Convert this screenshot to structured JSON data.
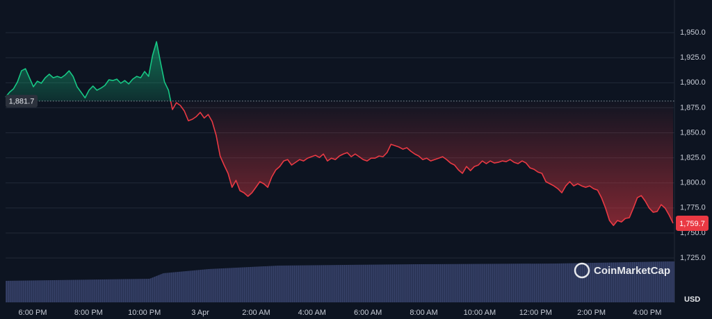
{
  "chart_data": {
    "type": "line",
    "colors": {
      "above": "#16c784",
      "below": "#ea3943"
    },
    "grid": true,
    "ylim": [
      1690,
      1975
    ],
    "yticks": [
      {
        "value": 1725,
        "label": "1,725.0"
      },
      {
        "value": 1750,
        "label": "1,750.0"
      },
      {
        "value": 1775,
        "label": "1,775.0"
      },
      {
        "value": 1800,
        "label": "1,800.0"
      },
      {
        "value": 1825,
        "label": "1,825.0"
      },
      {
        "value": 1850,
        "label": "1,850.0"
      },
      {
        "value": 1875,
        "label": "1,875.0"
      },
      {
        "value": 1900,
        "label": "1,900.0"
      },
      {
        "value": 1925,
        "label": "1,925.0"
      },
      {
        "value": 1950,
        "label": "1,950.0"
      }
    ],
    "x_labels": [
      "6:00 PM",
      "8:00 PM",
      "10:00 PM",
      "3 Apr",
      "2:00 AM",
      "4:00 AM",
      "6:00 AM",
      "8:00 AM",
      "10:00 AM",
      "12:00 PM",
      "2:00 PM",
      "4:00 PM"
    ],
    "baseline": {
      "value": 1881.7,
      "label": "1,881.7"
    },
    "last_price": {
      "value": 1759.7,
      "label": "1,759.7"
    },
    "currency": "USD",
    "watermark": "CoinMarketCap",
    "values": [
      1885.6,
      1890.5,
      1893.9,
      1900.8,
      1911.9,
      1914.0,
      1905.0,
      1896.0,
      1901.5,
      1899.5,
      1905.0,
      1908.5,
      1905.0,
      1906.4,
      1905.0,
      1907.8,
      1911.9,
      1906.4,
      1896.0,
      1890.5,
      1884.9,
      1892.5,
      1896.7,
      1892.5,
      1894.6,
      1897.4,
      1902.9,
      1902.2,
      1903.6,
      1899.5,
      1902.2,
      1898.8,
      1903.6,
      1906.4,
      1905.0,
      1911.2,
      1906.4,
      1927.2,
      1941.0,
      1920.2,
      1900.8,
      1892.5,
      1873.2,
      1880.1,
      1877.3,
      1871.8,
      1862.1,
      1863.5,
      1866.2,
      1870.4,
      1864.8,
      1868.3,
      1861.4,
      1847.5,
      1826.8,
      1817.8,
      1809.5,
      1795.6,
      1802.5,
      1792.2,
      1790.1,
      1786.6,
      1790.1,
      1795.6,
      1801.2,
      1799.1,
      1795.6,
      1806.0,
      1812.9,
      1816.4,
      1821.9,
      1823.3,
      1817.8,
      1820.5,
      1823.3,
      1821.9,
      1824.7,
      1826.1,
      1827.5,
      1825.4,
      1828.8,
      1821.9,
      1824.7,
      1823.3,
      1826.8,
      1828.8,
      1830.2,
      1826.1,
      1828.8,
      1826.1,
      1823.3,
      1821.9,
      1824.7,
      1824.7,
      1826.8,
      1826.1,
      1830.2,
      1838.5,
      1837.2,
      1835.8,
      1833.7,
      1835.1,
      1831.6,
      1828.8,
      1826.8,
      1823.3,
      1824.7,
      1821.9,
      1823.3,
      1824.7,
      1826.1,
      1823.3,
      1819.8,
      1817.8,
      1812.9,
      1809.5,
      1816.4,
      1812.2,
      1816.4,
      1817.8,
      1821.9,
      1819.2,
      1821.9,
      1819.8,
      1820.5,
      1821.9,
      1821.2,
      1823.3,
      1820.5,
      1819.2,
      1821.9,
      1819.8,
      1815.0,
      1813.6,
      1810.8,
      1809.5,
      1801.2,
      1799.1,
      1797.0,
      1794.2,
      1790.1,
      1797.0,
      1801.2,
      1797.0,
      1799.1,
      1797.0,
      1795.6,
      1797.0,
      1794.2,
      1792.8,
      1785.2,
      1774.8,
      1762.4,
      1757.5,
      1762.4,
      1761.0,
      1764.5,
      1765.2,
      1774.8,
      1785.2,
      1787.3,
      1781.8,
      1774.8,
      1770.7,
      1771.4,
      1778.3,
      1774.8,
      1767.9,
      1759.7
    ]
  }
}
